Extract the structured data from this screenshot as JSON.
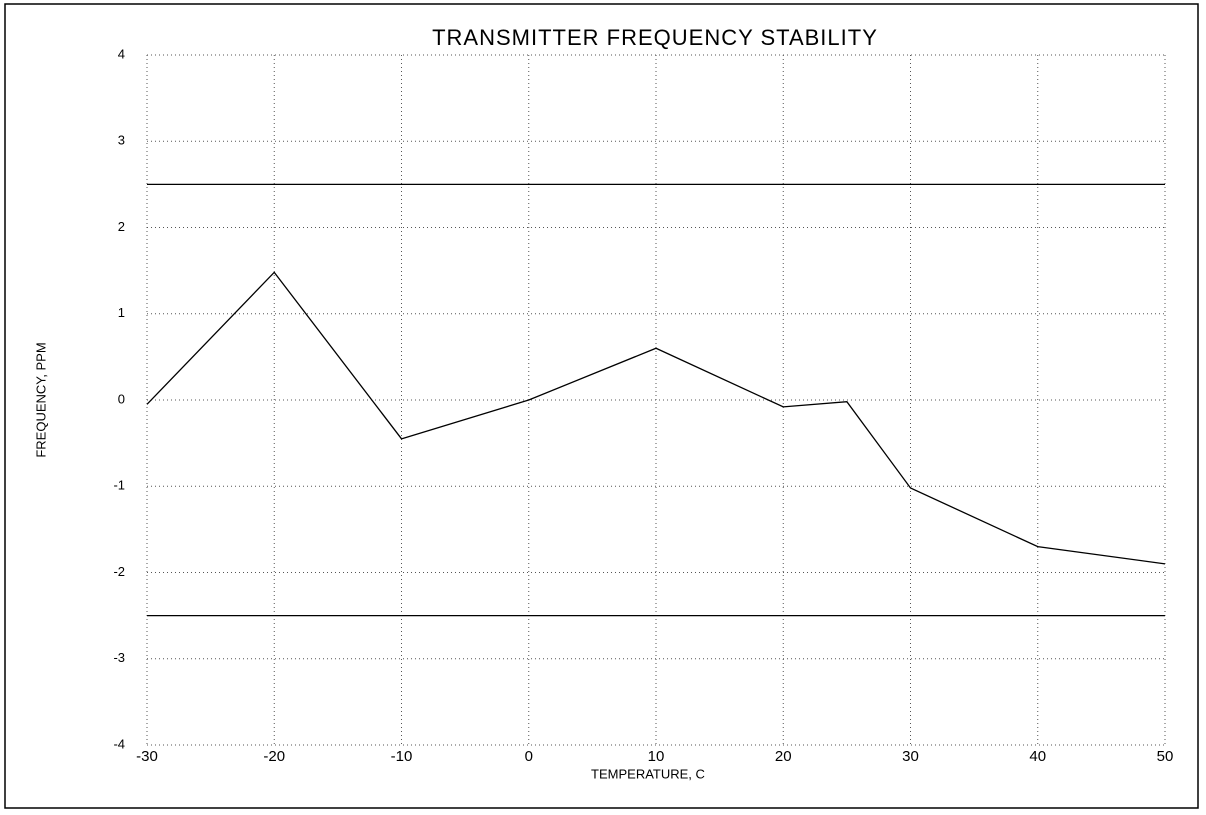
{
  "chart_data": {
    "type": "line",
    "title": "TRANSMITTER FREQUENCY STABILITY",
    "xlabel": "TEMPERATURE, C",
    "ylabel": "FREQUENCY, PPM",
    "x": [
      -30,
      -20,
      -10,
      0,
      10,
      20,
      25,
      30,
      40,
      50
    ],
    "values": [
      -0.05,
      1.48,
      -0.45,
      0.0,
      0.6,
      -0.08,
      -0.02,
      -1.02,
      -1.7,
      -1.9
    ],
    "color": "#000000",
    "hlines": [
      2.5,
      -2.5
    ],
    "xlim": [
      -30,
      50
    ],
    "xticks": [
      -30,
      -20,
      -10,
      0,
      10,
      20,
      30,
      40,
      50
    ],
    "ylim": [
      -4,
      4
    ],
    "yticks": [
      -4,
      -3,
      -2,
      -1,
      0,
      1,
      2,
      3,
      4
    ],
    "grid": true
  }
}
